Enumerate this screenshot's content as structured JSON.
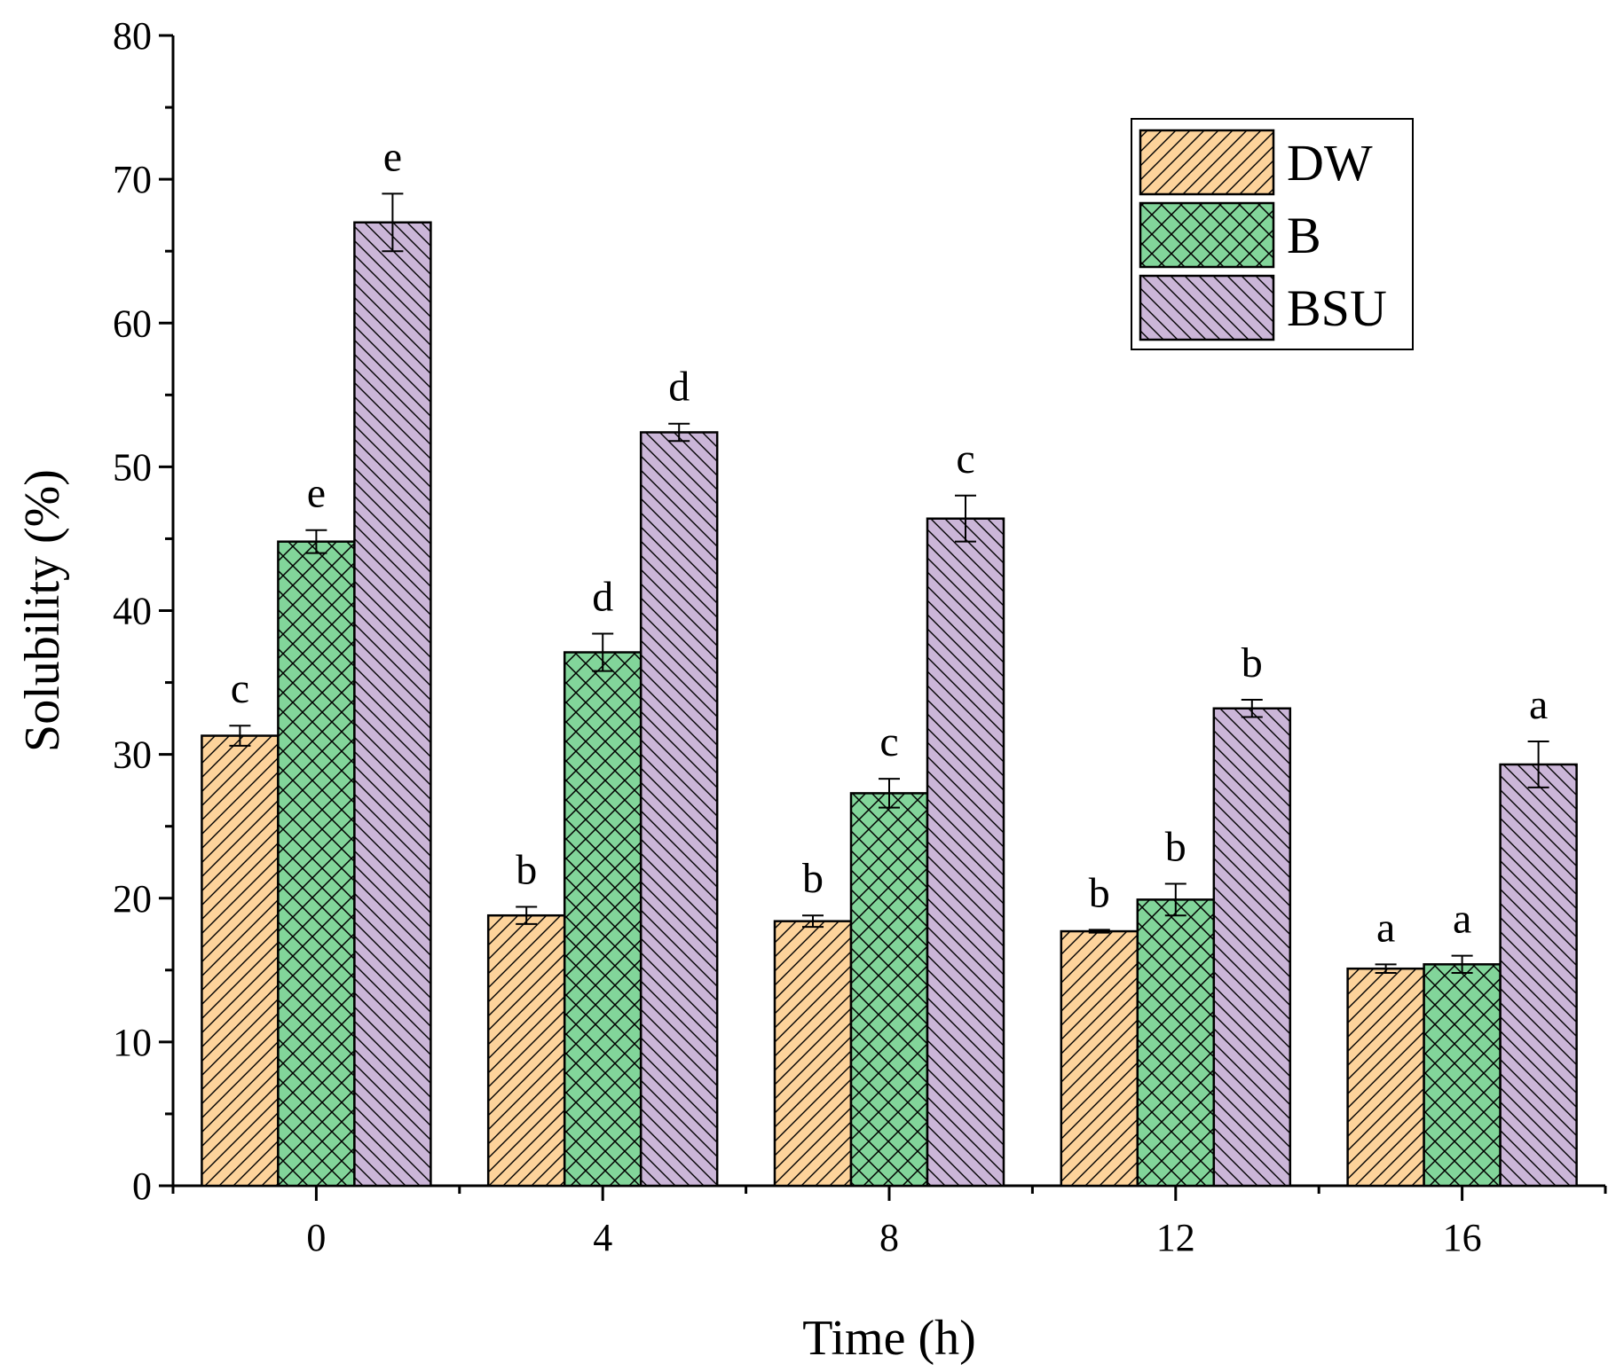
{
  "chart_data": {
    "type": "bar",
    "xlabel": "Time (h)",
    "ylabel": "Solubility (%)",
    "ylim": [
      0,
      80
    ],
    "yticks": [
      0,
      10,
      20,
      30,
      40,
      50,
      60,
      70,
      80
    ],
    "categories": [
      "0",
      "4",
      "8",
      "12",
      "16"
    ],
    "grid": false,
    "legend_position": "top-right",
    "series": [
      {
        "name": "DW",
        "color": "#fdd39b",
        "pattern": "forward-diagonal",
        "values": [
          31.3,
          18.8,
          18.4,
          17.7,
          15.1
        ],
        "errors": [
          0.7,
          0.6,
          0.4,
          0.1,
          0.3
        ],
        "letters": [
          "c",
          "b",
          "b",
          "b",
          "a"
        ]
      },
      {
        "name": "B",
        "color": "#82d59a",
        "pattern": "cross-hatch",
        "values": [
          44.8,
          37.1,
          27.3,
          19.9,
          15.4
        ],
        "errors": [
          0.8,
          1.3,
          1.0,
          1.1,
          0.6
        ],
        "letters": [
          "e",
          "d",
          "c",
          "b",
          "a"
        ]
      },
      {
        "name": "BSU",
        "color": "#cbb6d8",
        "pattern": "back-diagonal",
        "values": [
          67.0,
          52.4,
          46.4,
          33.2,
          29.3
        ],
        "errors": [
          2.0,
          0.6,
          1.6,
          0.6,
          1.6
        ],
        "letters": [
          "e",
          "d",
          "c",
          "b",
          "a"
        ]
      }
    ]
  }
}
